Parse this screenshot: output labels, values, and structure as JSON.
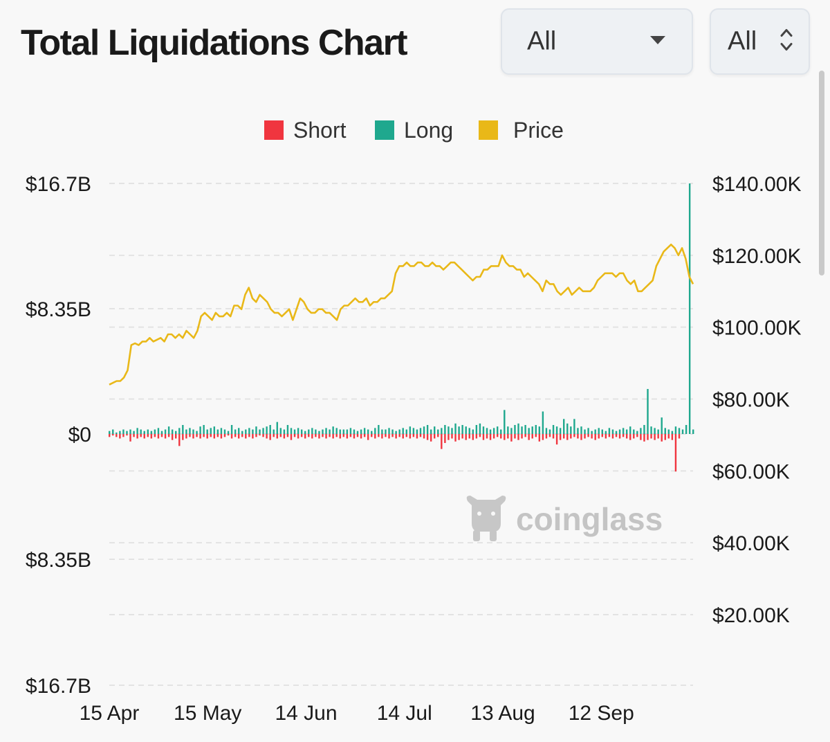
{
  "header": {
    "title": "Total Liquidations Chart",
    "select_range": {
      "value": "All"
    },
    "select_coin": {
      "value": "All"
    }
  },
  "watermark": {
    "text": "coinglass"
  },
  "chart_data": {
    "type": "bar",
    "title": "Total Liquidations Chart",
    "legend": [
      {
        "name": "Short",
        "color": "#f0353f"
      },
      {
        "name": "Long",
        "color": "#1fa88e"
      },
      {
        "name": "Price",
        "color": "#e9b818"
      }
    ],
    "legend_position": "top-center",
    "grid": true,
    "y_left": {
      "ticks": [
        "$16.7B",
        "$8.35B",
        "$0",
        "$8.35B",
        "$16.7B"
      ],
      "range": [
        -16.7,
        16.7
      ],
      "unit": "B USD"
    },
    "y_right": {
      "ticks": [
        "$140.00K",
        "$120.00K",
        "$100.00K",
        "$80.00K",
        "$60.00K",
        "$40.00K",
        "$20.00K"
      ],
      "range": [
        10,
        140
      ],
      "unit": "K USD"
    },
    "x_ticks": [
      "15 Apr",
      "15 May",
      "14 Jun",
      "14 Jul",
      "13 Aug",
      "12 Sep"
    ],
    "x_range_days": [
      0,
      178
    ],
    "x_tick_days": [
      0,
      30,
      60,
      90,
      120,
      150
    ],
    "series": [
      {
        "name": "Price",
        "axis": "right",
        "points": [
          [
            0,
            84
          ],
          [
            1,
            84.5
          ],
          [
            2,
            85
          ],
          [
            3,
            85
          ],
          [
            4,
            86
          ],
          [
            5,
            88
          ],
          [
            6,
            95
          ],
          [
            7,
            95.5
          ],
          [
            8,
            95
          ],
          [
            9,
            96
          ],
          [
            10,
            96
          ],
          [
            11,
            97
          ],
          [
            12,
            96
          ],
          [
            13,
            96.5
          ],
          [
            14,
            97
          ],
          [
            15,
            96
          ],
          [
            16,
            98
          ],
          [
            17,
            98
          ],
          [
            18,
            97
          ],
          [
            19,
            98
          ],
          [
            20,
            97
          ],
          [
            21,
            99
          ],
          [
            22,
            98
          ],
          [
            23,
            97
          ],
          [
            24,
            99
          ],
          [
            25,
            103
          ],
          [
            26,
            104
          ],
          [
            27,
            103
          ],
          [
            28,
            102
          ],
          [
            29,
            104
          ],
          [
            30,
            103
          ],
          [
            31,
            103
          ],
          [
            32,
            104
          ],
          [
            33,
            103
          ],
          [
            34,
            106
          ],
          [
            35,
            106
          ],
          [
            36,
            105
          ],
          [
            37,
            109
          ],
          [
            38,
            111
          ],
          [
            39,
            108
          ],
          [
            40,
            107
          ],
          [
            41,
            109
          ],
          [
            42,
            108
          ],
          [
            43,
            107
          ],
          [
            44,
            105
          ],
          [
            45,
            104
          ],
          [
            46,
            104
          ],
          [
            47,
            103
          ],
          [
            48,
            104
          ],
          [
            49,
            105
          ],
          [
            50,
            102
          ],
          [
            51,
            105
          ],
          [
            52,
            108
          ],
          [
            53,
            107
          ],
          [
            54,
            105
          ],
          [
            55,
            104
          ],
          [
            56,
            104
          ],
          [
            57,
            105
          ],
          [
            58,
            105
          ],
          [
            59,
            104
          ],
          [
            60,
            104
          ],
          [
            61,
            103
          ],
          [
            62,
            102
          ],
          [
            63,
            105
          ],
          [
            64,
            106
          ],
          [
            65,
            106
          ],
          [
            66,
            107
          ],
          [
            67,
            108
          ],
          [
            68,
            107
          ],
          [
            69,
            107
          ],
          [
            70,
            108
          ],
          [
            71,
            106
          ],
          [
            72,
            107
          ],
          [
            73,
            107
          ],
          [
            74,
            108
          ],
          [
            75,
            108
          ],
          [
            76,
            109
          ],
          [
            77,
            110
          ],
          [
            78,
            115
          ],
          [
            79,
            117
          ],
          [
            80,
            117
          ],
          [
            81,
            118
          ],
          [
            82,
            117
          ],
          [
            83,
            117
          ],
          [
            84,
            118
          ],
          [
            85,
            118
          ],
          [
            86,
            117
          ],
          [
            87,
            117
          ],
          [
            88,
            118
          ],
          [
            89,
            117
          ],
          [
            90,
            117
          ],
          [
            91,
            116
          ],
          [
            92,
            117
          ],
          [
            93,
            118
          ],
          [
            94,
            118
          ],
          [
            95,
            117
          ],
          [
            96,
            116
          ],
          [
            97,
            115
          ],
          [
            98,
            114
          ],
          [
            99,
            113
          ],
          [
            100,
            114
          ],
          [
            101,
            114
          ],
          [
            102,
            116
          ],
          [
            103,
            116
          ],
          [
            104,
            117
          ],
          [
            105,
            117
          ],
          [
            106,
            117
          ],
          [
            107,
            120
          ],
          [
            108,
            118
          ],
          [
            109,
            117
          ],
          [
            110,
            117
          ],
          [
            111,
            116
          ],
          [
            112,
            116
          ],
          [
            113,
            114
          ],
          [
            114,
            115
          ],
          [
            115,
            114
          ],
          [
            116,
            113
          ],
          [
            117,
            112
          ],
          [
            118,
            110
          ],
          [
            119,
            113
          ],
          [
            120,
            112
          ],
          [
            121,
            112
          ],
          [
            122,
            110
          ],
          [
            123,
            109
          ],
          [
            124,
            110
          ],
          [
            125,
            111
          ],
          [
            126,
            109
          ],
          [
            127,
            110
          ],
          [
            128,
            111
          ],
          [
            129,
            110
          ],
          [
            130,
            110
          ],
          [
            131,
            110
          ],
          [
            132,
            111
          ],
          [
            133,
            113
          ],
          [
            134,
            114
          ],
          [
            135,
            115
          ],
          [
            136,
            115
          ],
          [
            137,
            115
          ],
          [
            138,
            114
          ],
          [
            139,
            115
          ],
          [
            140,
            115
          ],
          [
            141,
            113
          ],
          [
            142,
            112
          ],
          [
            143,
            113
          ],
          [
            144,
            110
          ],
          [
            145,
            110
          ],
          [
            146,
            111
          ],
          [
            147,
            112
          ],
          [
            148,
            113
          ],
          [
            149,
            117
          ],
          [
            150,
            119
          ],
          [
            151,
            121
          ],
          [
            152,
            122
          ],
          [
            153,
            123
          ],
          [
            154,
            122
          ],
          [
            155,
            120
          ],
          [
            156,
            122
          ],
          [
            157,
            119
          ],
          [
            158,
            114
          ],
          [
            159,
            112
          ]
        ]
      },
      {
        "name": "Long",
        "axis": "left",
        "values_b": [
          0.2,
          0.3,
          0.1,
          0.2,
          0.3,
          0.2,
          0.3,
          0.2,
          0.4,
          0.3,
          0.2,
          0.3,
          0.2,
          0.3,
          0.4,
          0.2,
          0.3,
          0.5,
          0.3,
          0.2,
          0.4,
          0.6,
          0.3,
          0.4,
          0.3,
          0.2,
          0.5,
          0.6,
          0.3,
          0.4,
          0.5,
          0.3,
          0.4,
          0.3,
          0.2,
          0.6,
          0.3,
          0.4,
          0.2,
          0.3,
          0.4,
          0.3,
          0.5,
          0.3,
          0.4,
          0.5,
          0.6,
          0.3,
          0.8,
          0.4,
          0.3,
          0.6,
          0.4,
          0.3,
          0.4,
          0.3,
          0.2,
          0.3,
          0.4,
          0.3,
          0.2,
          0.3,
          0.4,
          0.3,
          0.5,
          0.4,
          0.3,
          0.3,
          0.3,
          0.4,
          0.3,
          0.2,
          0.3,
          0.4,
          0.3,
          0.2,
          0.4,
          0.6,
          0.3,
          0.3,
          0.4,
          0.3,
          0.2,
          0.3,
          0.4,
          0.3,
          0.5,
          0.4,
          0.3,
          0.4,
          0.5,
          0.6,
          0.3,
          0.5,
          0.3,
          0.4,
          0.6,
          0.5,
          0.4,
          0.7,
          0.5,
          0.6,
          0.5,
          0.4,
          0.3,
          0.6,
          0.7,
          0.5,
          0.4,
          0.3,
          0.4,
          0.5,
          0.3,
          1.6,
          0.5,
          0.4,
          0.6,
          0.7,
          0.5,
          0.6,
          0.4,
          0.5,
          0.6,
          0.5,
          1.5,
          0.4,
          0.3,
          0.6,
          0.5,
          0.4,
          1.0,
          0.7,
          0.5,
          1.0,
          0.4,
          0.5,
          0.3,
          0.4,
          0.2,
          0.3,
          0.4,
          0.3,
          0.2,
          0.4,
          0.3,
          0.2,
          0.3,
          0.4,
          0.3,
          0.5,
          0.3,
          0.2,
          0.4,
          0.6,
          3.0,
          0.5,
          0.4,
          0.3,
          1.1,
          0.4,
          0.3,
          0.2,
          0.5,
          0.4,
          0.3,
          0.6,
          16.7,
          0.3
        ]
      },
      {
        "name": "Short",
        "axis": "left",
        "values_b": [
          -0.2,
          -0.1,
          -0.2,
          -0.3,
          -0.2,
          -0.1,
          -0.5,
          -0.2,
          -0.3,
          -0.2,
          -0.3,
          -0.2,
          -0.3,
          -0.2,
          -0.3,
          -0.2,
          -0.3,
          -0.2,
          -0.4,
          -0.3,
          -0.8,
          -0.4,
          -0.3,
          -0.2,
          -0.3,
          -0.2,
          -0.3,
          -0.2,
          -0.3,
          -0.2,
          -0.3,
          -0.2,
          -0.3,
          -0.2,
          -0.1,
          -0.3,
          -0.2,
          -0.3,
          -0.2,
          -0.3,
          -0.2,
          -0.3,
          -0.2,
          -0.1,
          -0.2,
          -0.3,
          -0.4,
          -0.2,
          -0.3,
          -0.2,
          -0.3,
          -0.2,
          -0.4,
          -0.2,
          -0.3,
          -0.2,
          -0.3,
          -0.2,
          -0.3,
          -0.2,
          -0.3,
          -0.2,
          -0.3,
          -0.2,
          -0.3,
          -0.2,
          -0.3,
          -0.2,
          -0.3,
          -0.2,
          -0.3,
          -0.2,
          -0.3,
          -0.2,
          -0.4,
          -0.2,
          -0.3,
          -0.2,
          -0.3,
          -0.2,
          -0.3,
          -0.2,
          -0.3,
          -0.2,
          -0.3,
          -0.2,
          -0.3,
          -0.2,
          -0.3,
          -0.2,
          -0.3,
          -0.4,
          -0.5,
          -0.3,
          -0.2,
          -1.0,
          -0.6,
          -0.4,
          -0.3,
          -0.5,
          -0.4,
          -0.3,
          -0.4,
          -0.3,
          -0.4,
          -0.3,
          -0.2,
          -0.4,
          -0.3,
          -0.4,
          -0.3,
          -0.2,
          -0.3,
          -0.4,
          -0.3,
          -0.5,
          -0.3,
          -0.4,
          -0.3,
          -0.2,
          -0.4,
          -0.3,
          -0.2,
          -0.5,
          -0.4,
          -0.3,
          -0.2,
          -0.3,
          -0.7,
          -0.4,
          -0.3,
          -0.4,
          -0.3,
          -0.2,
          -0.3,
          -0.4,
          -0.3,
          -0.2,
          -0.3,
          -0.4,
          -0.3,
          -0.2,
          -0.3,
          -0.2,
          -0.3,
          -0.2,
          -0.3,
          -0.2,
          -0.3,
          -0.4,
          -0.3,
          -0.2,
          -0.4,
          -0.5,
          -0.4,
          -0.3,
          -0.4,
          -0.3,
          -0.5,
          -0.4,
          -0.3,
          -0.4,
          -2.5,
          -0.3
        ]
      }
    ]
  }
}
